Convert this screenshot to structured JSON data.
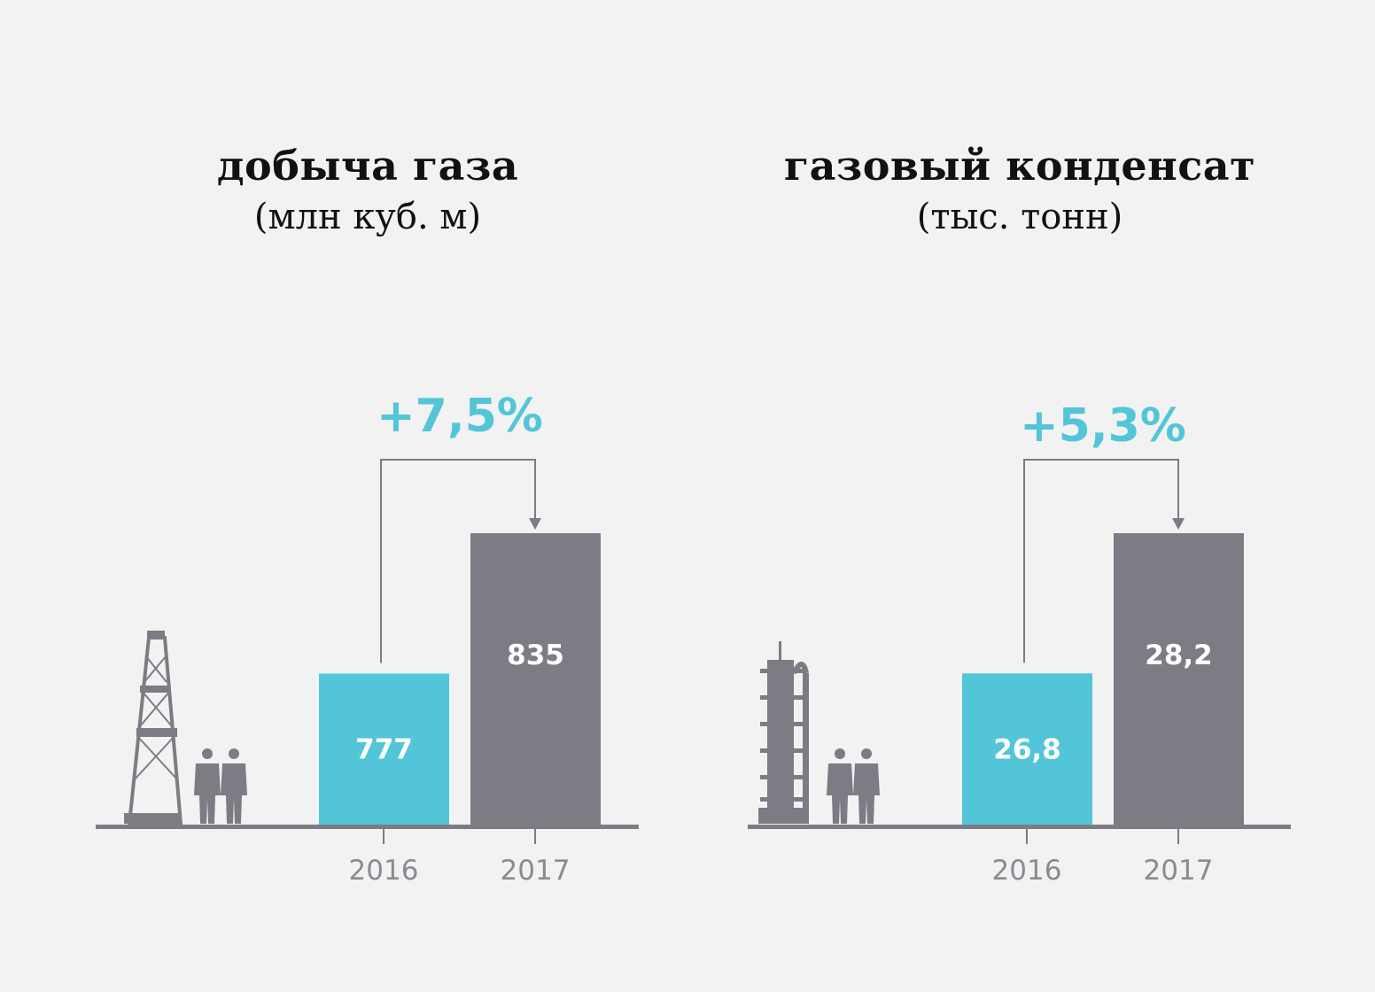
{
  "colors": {
    "background": "#f2f2f2",
    "bar_2016": "#52c6d8",
    "bar_2017": "#7b7c84",
    "axis": "#7b7c84",
    "bracket": "#7b7c84",
    "percent": "#52c6d8"
  },
  "chart_data": [
    {
      "type": "bar",
      "title": "добыча газа",
      "subtitle": "(млн куб. м)",
      "categories": [
        "2016",
        "2017"
      ],
      "values": [
        777,
        835
      ],
      "value_labels": [
        "777",
        "835"
      ],
      "change_label": "+7,5%",
      "ylim": [
        714.6,
        835
      ],
      "icon": "drilling-rig-icon"
    },
    {
      "type": "bar",
      "title": "газовый конденсат",
      "subtitle": "(тыс. тонн)",
      "categories": [
        "2016",
        "2017"
      ],
      "values": [
        26.8,
        28.2
      ],
      "value_labels": [
        "26,8",
        "28,2"
      ],
      "change_label": "+5,3%",
      "ylim": [
        25.29,
        28.2
      ],
      "icon": "refinery-column-icon"
    }
  ]
}
